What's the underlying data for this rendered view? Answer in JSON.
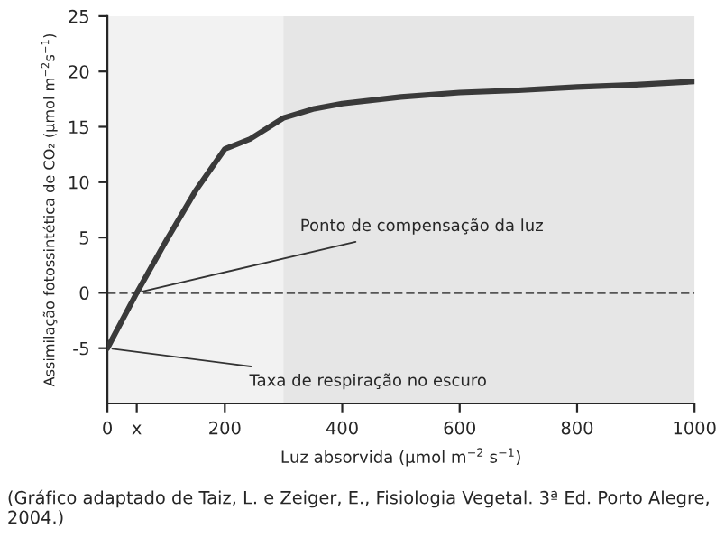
{
  "chart_data": {
    "type": "line",
    "xlabel": "Luz absorvida (μmol m$^{−2}$ s$^{−1}$)",
    "ylabel": "Assimilação fotossintética de CO₂ (μmol m$^{−2}$s$^{−1}$)",
    "x": [
      0,
      50,
      100,
      150,
      200,
      243,
      300,
      350,
      400,
      500,
      600,
      700,
      800,
      900,
      1000
    ],
    "series": [
      {
        "color": "#3a3a3a",
        "values": [
          -5,
          0,
          4.7,
          9.2,
          13.0,
          13.9,
          15.8,
          16.6,
          17.1,
          17.7,
          18.1,
          18.3,
          18.6,
          18.8,
          19.1
        ]
      }
    ],
    "xlim": [
      0,
      1000
    ],
    "ylim": [
      -10,
      25
    ],
    "xticks": [
      0,
      {
        "value": 50,
        "label": "x"
      },
      200,
      400,
      600,
      800,
      1000
    ],
    "yticks": [
      -5,
      0,
      5,
      10,
      15,
      20,
      25
    ],
    "ref_lines": [
      {
        "axis": "y",
        "value": 0,
        "line_style": "dashed",
        "color": "#555555"
      }
    ],
    "bands": [
      {
        "axis": "x",
        "from": 300,
        "to": 1000,
        "color": "#e6e6e6"
      }
    ],
    "annotations": [
      {
        "text": "Ponto de compensação da luz",
        "x": 50,
        "y": 0
      },
      {
        "text": "Taxa de respiração no escuro",
        "x": 0,
        "y": -5
      },
      "(Gráfico adaptado de Taiz, L. e Zeiger, E., Fisiologia Vegetal. 3ª Ed. Porto Alegre, 2004.)"
    ],
    "grid": false,
    "legend": false,
    "marker": "none",
    "line_style": "solid"
  }
}
